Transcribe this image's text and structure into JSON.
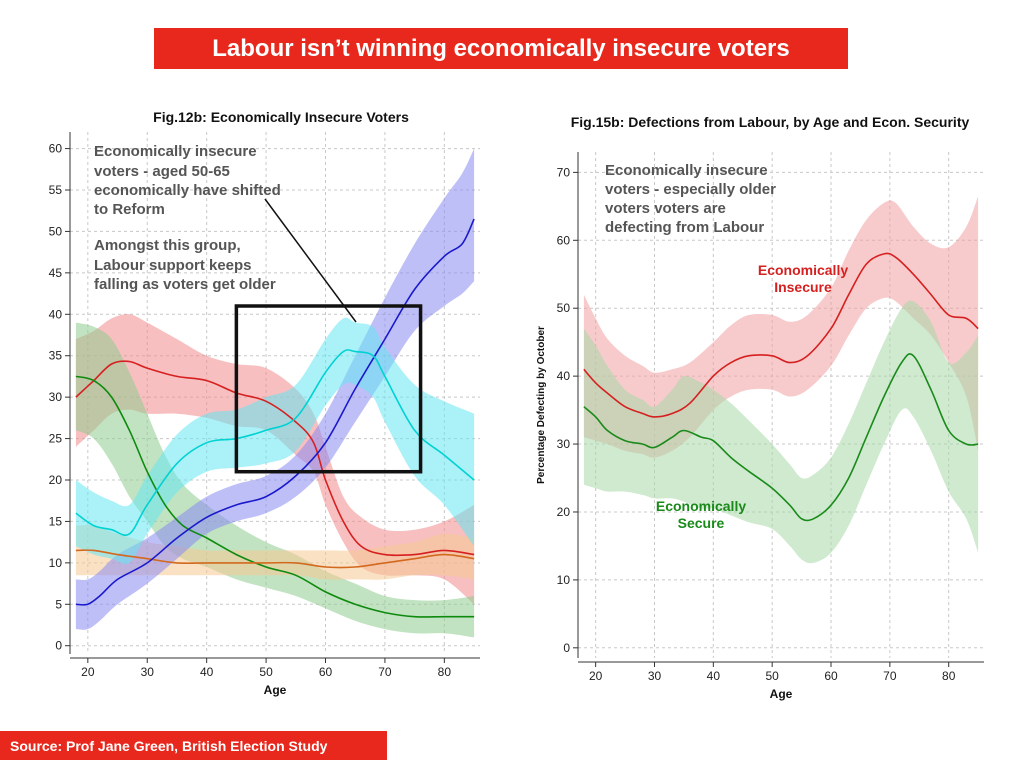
{
  "banner": {
    "title": "Labour isn’t winning economically insecure voters"
  },
  "source": {
    "text": "Source: Prof Jane Green, British Election Study"
  },
  "chart_data": [
    {
      "type": "line",
      "title": "Fig.12b: Economically Insecure Voters",
      "xlabel": "Age",
      "ylabel": "",
      "xlim": [
        17,
        86
      ],
      "ylim": [
        -1,
        62
      ],
      "xticks": [
        20,
        30,
        40,
        50,
        60,
        70,
        80
      ],
      "yticks": [
        0,
        5,
        10,
        15,
        20,
        25,
        30,
        35,
        40,
        45,
        50,
        55,
        60
      ],
      "grid": true,
      "annotations": [
        "Economically insecure",
        "voters - aged 50-65",
        "economically have shifted",
        "to Reform",
        "Amongst this group,",
        "Labour support keeps",
        "falling as voters get older"
      ],
      "highlight_box": {
        "x": [
          45,
          76
        ],
        "y": [
          21,
          41
        ]
      },
      "series": [
        {
          "color": "#d62020",
          "band": "#f08a8a",
          "x": [
            18,
            21,
            24,
            27,
            30,
            35,
            40,
            45,
            50,
            55,
            58,
            60,
            63,
            66,
            70,
            75,
            80,
            85
          ],
          "values": [
            30,
            32,
            34,
            34.3,
            33.5,
            32.5,
            32,
            30.5,
            29.5,
            27,
            24.5,
            20,
            15,
            12,
            11,
            11,
            11.5,
            11
          ],
          "lower": [
            24,
            26,
            28,
            28.5,
            28,
            28,
            27.5,
            26.5,
            26,
            23,
            21,
            17,
            12.5,
            9.5,
            8.5,
            8.5,
            8,
            5
          ],
          "upper": [
            37,
            38,
            39.5,
            40,
            39,
            37,
            35,
            34,
            33.5,
            31,
            28,
            24,
            18,
            15.5,
            14,
            14,
            15,
            17
          ]
        },
        {
          "color": "#0e8a0e",
          "band": "#8fcc8f",
          "x": [
            18,
            21,
            24,
            27,
            30,
            33,
            36,
            40,
            45,
            50,
            55,
            60,
            65,
            70,
            75,
            80,
            85
          ],
          "values": [
            32.5,
            32,
            30,
            26,
            21,
            17,
            14.5,
            13,
            11,
            9.5,
            8.5,
            6.5,
            5,
            4,
            3.5,
            3.5,
            3.5
          ],
          "lower": [
            26,
            25,
            22,
            18,
            15,
            12,
            10.5,
            9.5,
            8,
            7,
            6,
            4.5,
            3,
            2,
            1.5,
            1.5,
            1
          ],
          "upper": [
            39,
            38.5,
            37,
            33,
            28,
            23,
            19.5,
            17,
            14.5,
            12.5,
            11,
            9,
            7.5,
            6,
            5.5,
            5.5,
            6
          ]
        },
        {
          "color": "#d2691e",
          "band": "#f5c893",
          "x": [
            18,
            21,
            25,
            30,
            35,
            40,
            45,
            50,
            55,
            60,
            65,
            70,
            75,
            80,
            85
          ],
          "values": [
            11.5,
            11.5,
            11,
            10.5,
            10,
            10,
            10,
            10,
            10,
            9.5,
            9.5,
            10,
            10.5,
            11,
            10.5
          ],
          "lower": [
            8.5,
            8.5,
            8.5,
            8.5,
            8.5,
            8.5,
            8.5,
            8.5,
            8.5,
            8,
            8,
            8,
            8.5,
            8.5,
            8
          ],
          "upper": [
            14.5,
            14.5,
            13.5,
            12.5,
            12,
            11.5,
            11.5,
            11.5,
            11.5,
            11.5,
            11.5,
            12,
            12.5,
            13.5,
            13
          ]
        },
        {
          "color": "#1a1acc",
          "band": "#8a8af2",
          "x": [
            18,
            20,
            22,
            25,
            30,
            35,
            40,
            45,
            50,
            55,
            60,
            65,
            70,
            75,
            80,
            83,
            85
          ],
          "values": [
            5,
            5,
            6,
            8,
            10,
            13,
            15.5,
            17,
            18,
            20.5,
            24.5,
            31,
            37,
            43,
            47,
            48.5,
            51.5
          ],
          "lower": [
            2,
            2,
            3,
            5,
            7.5,
            10.5,
            13.5,
            15,
            16,
            18,
            21.5,
            27,
            32.5,
            38,
            41,
            42.5,
            44
          ],
          "upper": [
            8,
            8,
            9,
            11,
            13,
            15.5,
            18,
            19.5,
            20.5,
            23,
            28,
            35,
            42,
            48.5,
            54,
            57,
            60
          ]
        },
        {
          "color": "#00d2d2",
          "band": "#66e6f2",
          "x": [
            18,
            21,
            24,
            27,
            30,
            35,
            40,
            45,
            50,
            55,
            60,
            63,
            65,
            68,
            70,
            75,
            80,
            85
          ],
          "values": [
            16,
            14.5,
            14,
            13.5,
            17,
            22,
            24.5,
            25,
            26,
            27.5,
            33,
            35.5,
            35.5,
            35,
            32.5,
            26,
            23,
            20
          ],
          "lower": [
            12,
            11,
            10.5,
            10,
            13.5,
            18.5,
            21,
            21.5,
            22,
            23.5,
            29,
            31.5,
            31.5,
            30,
            27,
            20.5,
            17,
            12
          ],
          "upper": [
            20,
            18.5,
            17.5,
            17,
            20.5,
            25.5,
            28,
            28.5,
            30,
            31.5,
            37,
            39.5,
            39,
            38.5,
            36,
            31.5,
            29.5,
            28
          ]
        }
      ]
    },
    {
      "type": "line",
      "title": "Fig.15b: Defections from Labour, by Age and Econ. Security",
      "xlabel": "Age",
      "ylabel": "Percentage Defecting by October",
      "xlim": [
        17,
        86
      ],
      "ylim": [
        -1.5,
        73
      ],
      "xticks": [
        20,
        30,
        40,
        50,
        60,
        70,
        80
      ],
      "yticks": [
        0,
        10,
        20,
        30,
        40,
        50,
        60,
        70
      ],
      "grid": true,
      "annotations": [
        "Economically insecure",
        "voters - especially older",
        "voters voters are",
        "defecting from Labour"
      ],
      "series": [
        {
          "name": "Economically Insecure",
          "label_lines": [
            "Economically",
            "Insecure"
          ],
          "color": "#d62020",
          "band": "#f0a0a0",
          "x": [
            18,
            20,
            22,
            25,
            28,
            30,
            33,
            36,
            40,
            43,
            46,
            50,
            53,
            56,
            60,
            63,
            66,
            69,
            71,
            74,
            77,
            80,
            83,
            85
          ],
          "values": [
            41,
            39,
            37.5,
            35.5,
            34.5,
            34,
            34.5,
            36,
            40,
            42,
            43,
            43,
            42,
            43,
            47,
            52,
            56.5,
            58,
            57.5,
            55,
            52,
            49,
            48.5,
            47
          ],
          "lower": [
            31,
            30.5,
            30,
            29,
            28.5,
            28,
            29,
            31,
            35,
            37,
            38,
            38,
            37,
            38,
            41.5,
            46,
            50,
            51.5,
            51,
            48.5,
            46,
            42,
            37,
            29
          ],
          "upper": [
            52,
            48.5,
            45.5,
            43,
            41.5,
            40.5,
            41,
            42,
            45,
            47.5,
            49,
            49,
            48,
            49,
            53,
            58.5,
            63,
            65.5,
            65.5,
            62,
            59.5,
            59,
            62,
            66.5
          ]
        },
        {
          "name": "Economically Secure",
          "label_lines": [
            "Economically",
            "Secure"
          ],
          "color": "#1a8a1a",
          "band": "#a8d8a8",
          "x": [
            18,
            20,
            22,
            25,
            28,
            30,
            33,
            35,
            38,
            40,
            43,
            46,
            50,
            53,
            55,
            57,
            60,
            63,
            66,
            69,
            72,
            74,
            77,
            80,
            83,
            85
          ],
          "values": [
            35.5,
            34,
            32,
            30.5,
            30,
            29.5,
            31,
            32,
            31,
            30.5,
            28,
            26,
            23.5,
            21,
            19,
            19,
            21,
            25,
            31,
            37,
            42,
            43,
            38,
            32,
            30,
            30
          ],
          "lower": [
            24,
            23.5,
            23,
            23,
            22.5,
            22,
            22,
            21.5,
            20.5,
            20.5,
            19.5,
            18.5,
            17.5,
            15,
            13,
            12.5,
            14,
            18,
            24,
            30,
            35,
            34,
            29,
            23,
            19,
            14
          ],
          "upper": [
            47,
            44.5,
            41.5,
            38,
            36.5,
            35.5,
            38,
            40,
            39,
            38,
            36,
            33.5,
            30,
            27,
            25,
            25.5,
            28,
            33,
            39,
            45,
            50,
            51,
            48,
            42,
            43.5,
            46
          ]
        }
      ]
    }
  ]
}
